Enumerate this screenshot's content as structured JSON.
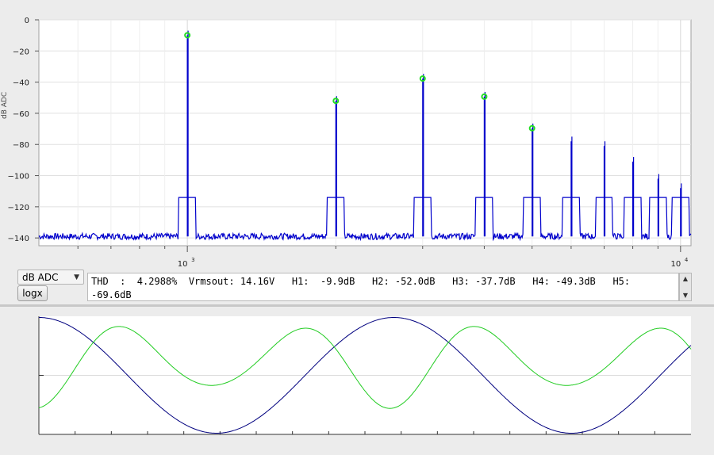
{
  "chart_data": [
    {
      "type": "line",
      "title": "",
      "xlabel": "",
      "ylabel": "dB ADC",
      "xscale": "log",
      "xlim": [
        500,
        10500
      ],
      "ylim": [
        -145,
        0
      ],
      "yticks": [
        0,
        -20,
        -40,
        -60,
        -80,
        -100,
        -120,
        -140
      ],
      "xtick_labels": [
        {
          "value": 1000,
          "base": "10",
          "exp": "3"
        },
        {
          "value": 10000,
          "base": "10",
          "exp": "4"
        }
      ],
      "grid": true,
      "series": [
        {
          "color": "#0000cc",
          "noise_floor": -139,
          "peaks": [
            {
              "x": 1000,
              "y": -9.9
            },
            {
              "x": 2000,
              "y": -52.0
            },
            {
              "x": 3000,
              "y": -37.7
            },
            {
              "x": 4000,
              "y": -49.3
            },
            {
              "x": 5000,
              "y": -69.6
            },
            {
              "x": 6000,
              "y": -78
            },
            {
              "x": 7000,
              "y": -81
            },
            {
              "x": 8000,
              "y": -91
            },
            {
              "x": 9000,
              "y": -102
            },
            {
              "x": 10000,
              "y": -108
            }
          ],
          "markers": [
            1000,
            2000,
            3000,
            4000,
            5000
          ],
          "marker_color": "#22dd22"
        }
      ]
    },
    {
      "type": "line",
      "title": "",
      "xlabel": "",
      "ylabel": "",
      "xlim": [
        0,
        1.8
      ],
      "ylim": [
        -1,
        1
      ],
      "grid": true,
      "series": [
        {
          "color": "#00007f",
          "function": "cos(2*pi*x)"
        },
        {
          "color": "#22cc22",
          "function": "0.2 - 0.7*cos(2*pi*x*2.5) ... harmonic distortion waveform"
        }
      ]
    }
  ],
  "controls": {
    "unit_select": "dB ADC",
    "logx_button": "logx",
    "readout": "THD  :  4.2988%  Vrmsout: 14.16V   H1:  -9.9dB   H2: -52.0dB   H3: -37.7dB   H4: -49.3dB   H5:\n-69.6dB"
  },
  "icons": {
    "select_arrow": "chevron-down-icon",
    "scroll_up": "arrow-up-icon",
    "scroll_down": "arrow-down-icon"
  }
}
